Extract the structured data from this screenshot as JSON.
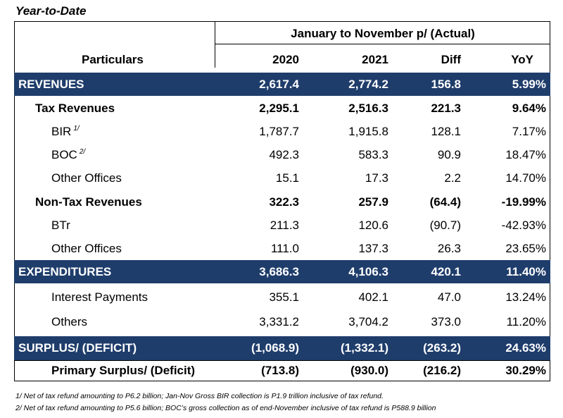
{
  "title": "Year-to-Date",
  "header": {
    "particulars": "Particulars",
    "period": "January to November p/ (Actual)",
    "col_2020": "2020",
    "col_2021": "2021",
    "col_diff": "Diff",
    "col_yoy": "YoY"
  },
  "rows": [
    {
      "name": "REVENUES",
      "sup": "",
      "v2020": "2,617.4",
      "v2021": "2,774.2",
      "diff": "156.8",
      "yoy": "5.99%"
    },
    {
      "name": "Tax Revenues",
      "sup": "",
      "v2020": "2,295.1",
      "v2021": "2,516.3",
      "diff": "221.3",
      "yoy": "9.64%"
    },
    {
      "name": "BIR",
      "sup": "1/",
      "v2020": "1,787.7",
      "v2021": "1,915.8",
      "diff": "128.1",
      "yoy": "7.17%"
    },
    {
      "name": "BOC",
      "sup": "2/",
      "v2020": "492.3",
      "v2021": "583.3",
      "diff": "90.9",
      "yoy": "18.47%"
    },
    {
      "name": "Other Offices",
      "sup": "",
      "v2020": "15.1",
      "v2021": "17.3",
      "diff": "2.2",
      "yoy": "14.70%"
    },
    {
      "name": "Non-Tax Revenues",
      "sup": "",
      "v2020": "322.3",
      "v2021": "257.9",
      "diff": "(64.4)",
      "yoy": "-19.99%"
    },
    {
      "name": "BTr",
      "sup": "",
      "v2020": "211.3",
      "v2021": "120.6",
      "diff": "(90.7)",
      "yoy": "-42.93%"
    },
    {
      "name": "Other Offices",
      "sup": "",
      "v2020": "111.0",
      "v2021": "137.3",
      "diff": "26.3",
      "yoy": "23.65%"
    },
    {
      "name": "EXPENDITURES",
      "sup": "",
      "v2020": "3,686.3",
      "v2021": "4,106.3",
      "diff": "420.1",
      "yoy": "11.40%"
    },
    {
      "name": "Interest Payments",
      "sup": "",
      "v2020": "355.1",
      "v2021": "402.1",
      "diff": "47.0",
      "yoy": "13.24%"
    },
    {
      "name": "Others",
      "sup": "",
      "v2020": "3,331.2",
      "v2021": "3,704.2",
      "diff": "373.0",
      "yoy": "11.20%"
    },
    {
      "name": "SURPLUS/ (DEFICIT)",
      "sup": "",
      "v2020": "(1,068.9)",
      "v2021": "(1,332.1)",
      "diff": "(263.2)",
      "yoy": "24.63%"
    },
    {
      "name": "Primary Surplus/ (Deficit)",
      "sup": "",
      "v2020": "(713.8)",
      "v2021": "(930.0)",
      "diff": "(216.2)",
      "yoy": "30.29%"
    }
  ],
  "footnotes": [
    "1/ Net of tax refund amounting to P6.2 billion; Jan-Nov Gross BIR collection is P1.9 trillion inclusive of tax refund.",
    "2/ Net of tax refund amounting to P5.6 billion; BOC’s gross collection as of end-November inclusive of tax refund is P588.9 billion"
  ],
  "colors": {
    "band": "#1f3d6b"
  }
}
